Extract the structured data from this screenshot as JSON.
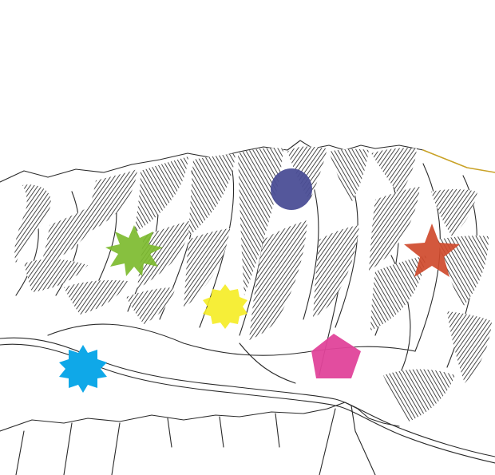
{
  "scene": {
    "description_name": "mountain-ridge-illustration",
    "colors": {
      "background": "#ffffff",
      "ink": "#2a2a2a",
      "ridge_highlight": "#c9a227"
    },
    "markers": [
      {
        "name": "blue-circle-marker",
        "shape": "circle",
        "color": "#4b4e96"
      },
      {
        "name": "green-starburst-marker",
        "shape": "starburst-12",
        "color": "#7dbb2f"
      },
      {
        "name": "red-star-marker",
        "shape": "star-5",
        "color": "#cf4a2c"
      },
      {
        "name": "yellow-starburst-marker",
        "shape": "starburst-16",
        "color": "#f5ec22"
      },
      {
        "name": "pink-pentagon-marker",
        "shape": "pentagon",
        "color": "#e0439a"
      },
      {
        "name": "cyan-starburst-marker",
        "shape": "starburst-14",
        "color": "#0fa8e8"
      }
    ]
  }
}
